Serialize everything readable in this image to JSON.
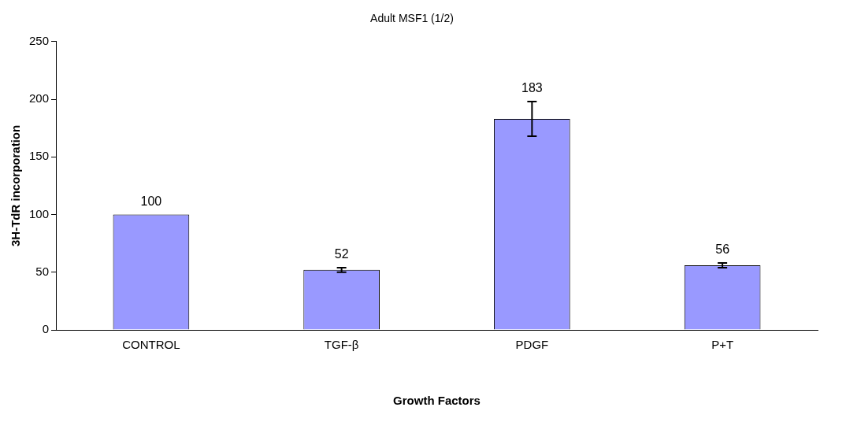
{
  "chart_data": {
    "type": "bar",
    "title": "Adult MSF1 (1/2)",
    "xlabel": "Growth Factors",
    "ylabel": "3H-TdR incorporation",
    "categories": [
      "CONTROL",
      "TGF-β",
      "PDGF",
      "P+T"
    ],
    "values": [
      100,
      52,
      183,
      56
    ],
    "errors": [
      null,
      2,
      15,
      2
    ],
    "color": "#9999ff",
    "ylim": [
      0,
      250
    ],
    "yticks": [
      0,
      50,
      100,
      150,
      200,
      250
    ],
    "grid": false,
    "legend": false,
    "data_labels": true
  }
}
